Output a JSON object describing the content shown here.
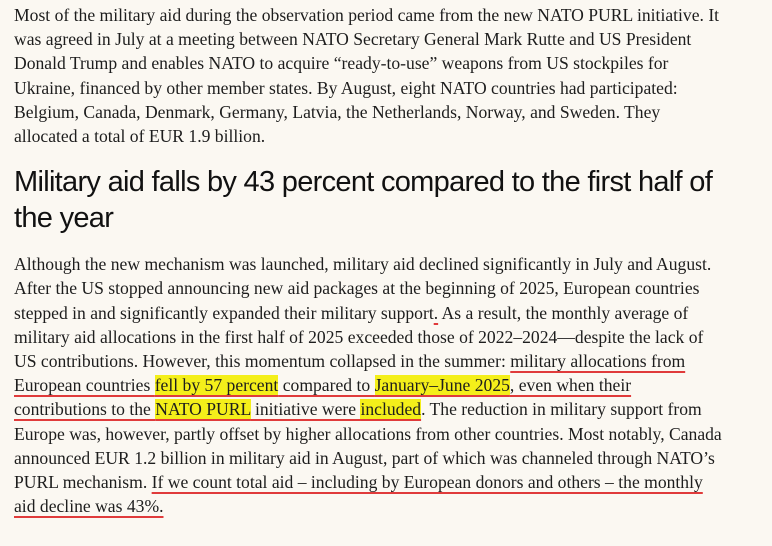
{
  "intro": "Most of the military aid during the observation period came from the new NATO PURL initiative. It was agreed in July at a meeting between NATO Secretary General Mark Rutte and US President Donald Trump and enables NATO to acquire “ready-to-use” weapons from US stockpiles for Ukraine, financed by other member states. By August, eight NATO countries had participated: Belgium, Canada, Denmark, Germany, Latvia, the Netherlands, Norway, and Sweden. They allocated a total of EUR 1.9 billion.",
  "heading": "Military aid falls by 43 percent compared to the first half of the year",
  "body": [
    "Although the new mechanism was launched, military aid declined significantly in July and August. After the US stopped announcing new aid packages at the beginning of 2025, European countries stepped in and significantly expanded their military support",
    ".",
    " As a result, the monthly average of military aid allocations in the first half of 2025 exceeded those of 2022–2024—despite the lack of US contributions. However, this momentum collapsed in the summer: ",
    "military allocations from European countries ",
    "fell by 57 percent",
    " compared to ",
    "January–June 2025",
    ", even when their contributions to the ",
    "NATO PURL",
    " initiative were ",
    "included",
    ". The reduction in military support from Europe was, however, partly offset by higher allocations from other countries. Most notably, Canada announced EUR 1.2 billion in military aid in August, part of which was channeled through NATO’s PURL mechanism. ",
    "If we count total aid – including by European donors and others – the monthly aid decline was 43%."
  ]
}
